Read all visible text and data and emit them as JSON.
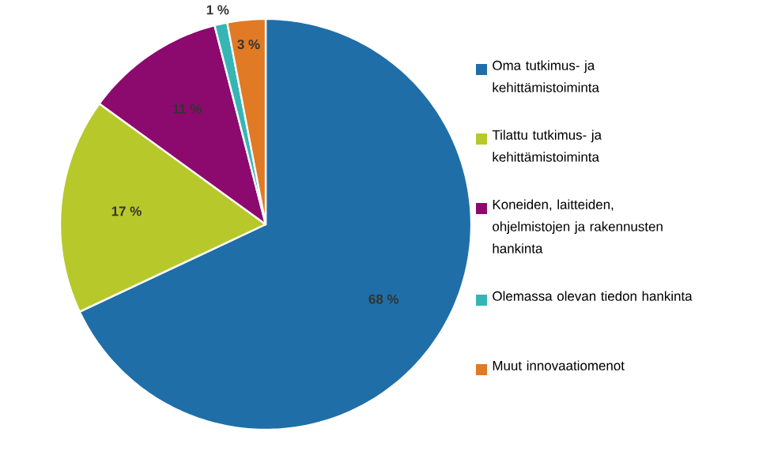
{
  "chart_data": {
    "type": "pie",
    "categories": [
      "Oma tutkimus- ja kehittämistoiminta",
      "Tilattu tutkimus- ja kehittämistoiminta",
      "Koneiden, laitteiden, ohjelmistojen ja rakennusten hankinta",
      "Olemassa olevan tiedon hankinta",
      "Muut innovaatiomenot"
    ],
    "values": [
      68,
      17,
      11,
      1,
      3
    ],
    "colors": [
      "#1f6ea8",
      "#b7c92a",
      "#8c0a6e",
      "#35b6b4",
      "#e07a24"
    ],
    "value_labels": [
      "68 %",
      "17 %",
      "11 %",
      "1 %",
      "3 %"
    ],
    "legend": "right"
  }
}
